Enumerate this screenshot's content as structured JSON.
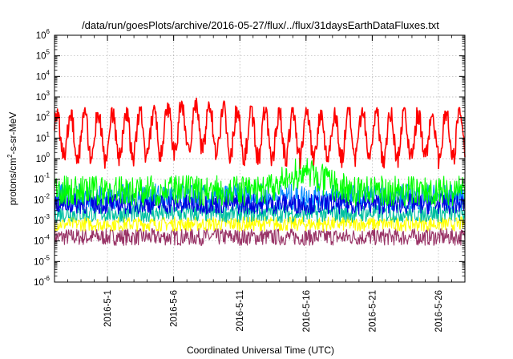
{
  "chart_data": {
    "type": "line",
    "title": "/data/run/goesPlots/archive/2016-05-27/flux/../flux/31daysEarthDataFluxes.txt",
    "xlabel": "Coordinated Universal Time (UTC)",
    "ylabel": "protons/cm2-s-sr-MeV",
    "ylabel_base": "protons/cm",
    "ylabel_sup": "2",
    "ylabel_rest": "-s-sr-MeV",
    "y_scale": "log",
    "ylim_exponents": [
      -6,
      6
    ],
    "ytick_base": "10",
    "ytick_exponents": [
      "6",
      "5",
      "4",
      "3",
      "2",
      "1",
      "0",
      "-1",
      "-2",
      "-3",
      "-4",
      "-5",
      "-6"
    ],
    "x_range_days": [
      "2016-04-27",
      "2016-05-28"
    ],
    "xtick_labels": [
      "2016-5-1",
      "2016-5-6",
      "2016-5-11",
      "2016-5-16",
      "2016-5-21",
      "2016-5-26"
    ],
    "xtick_dates": [
      "2016-05-01",
      "2016-05-06",
      "2016-05-11",
      "2016-05-16",
      "2016-05-21",
      "2016-05-26"
    ],
    "grid": true,
    "series": [
      {
        "color": "#ff0000",
        "typical_range": [
          0.3,
          300
        ],
        "peak": 1000,
        "peak_date": "2016-05-08"
      },
      {
        "color": "#00ff00",
        "typical_range": [
          0.005,
          0.15
        ],
        "peak": 2,
        "peak_date": "2016-05-16"
      },
      {
        "color": "#0088ff",
        "typical_range": [
          0.003,
          0.06
        ]
      },
      {
        "color": "#0000dd",
        "typical_range": [
          0.002,
          0.02
        ]
      },
      {
        "color": "#00c0a0",
        "typical_range": [
          0.0008,
          0.006
        ]
      },
      {
        "color": "#ffff00",
        "typical_range": [
          0.0003,
          0.0015
        ]
      },
      {
        "color": "#993366",
        "typical_range": [
          6e-05,
          0.0004
        ]
      }
    ]
  }
}
